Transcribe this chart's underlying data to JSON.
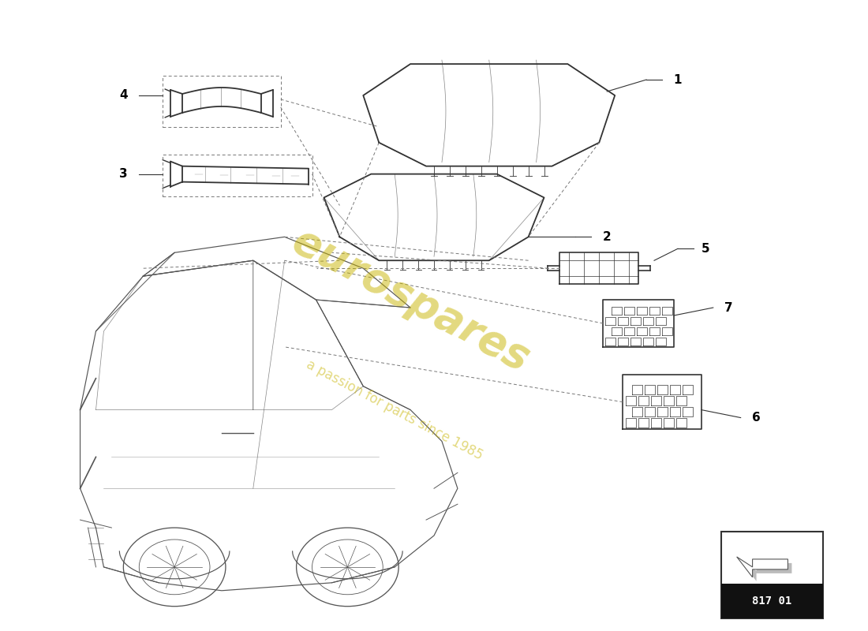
{
  "background_color": "#ffffff",
  "line_color": "#333333",
  "car_line_color": "#555555",
  "dashed_color": "#777777",
  "watermark_color_1": "#c8b400",
  "watermark_color_2": "#d4aa00",
  "label_fontsize": 11,
  "diagram_code": "817 01",
  "fig_width": 11.0,
  "fig_height": 8.0,
  "dpi": 100,
  "parts": [
    "1",
    "2",
    "3",
    "4",
    "5",
    "6",
    "7"
  ]
}
